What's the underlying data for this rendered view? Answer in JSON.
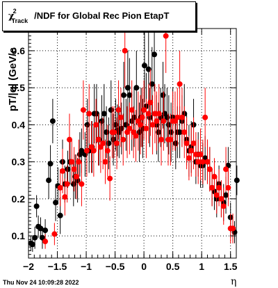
{
  "chart_data": {
    "type": "scatter",
    "title": "χ²Track/NDF for Global Rec Pion EtapT",
    "title_parts": {
      "base": "χ",
      "sup": "2",
      "sub": "Track",
      "rest": "/NDF for Global Rec Pion EtapT"
    },
    "xlabel": "η",
    "ylabel": "pT/|q| (GeV/c",
    "xlim": [
      -2,
      1.6
    ],
    "ylim": [
      0.04,
      0.66
    ],
    "xticks": [
      -2,
      -1.5,
      -1,
      -0.5,
      0,
      0.5,
      1,
      1.5
    ],
    "xtick_labels": [
      "−2",
      "−1.5",
      "−1",
      "−0.5",
      "0",
      "0.5",
      "1",
      "1.5"
    ],
    "yticks": [
      0.1,
      0.2,
      0.3,
      0.4,
      0.5,
      0.6
    ],
    "ytick_labels": [
      "0.1",
      "0.2",
      "0.3",
      "0.4",
      "0.5",
      "0.6"
    ],
    "grid": true,
    "timestamp": "Thu Nov 24 10:09:28 2022",
    "series": [
      {
        "color": "#000000",
        "points": [
          [
            -1.96,
            0.08
          ],
          [
            -1.93,
            0.077
          ],
          [
            -1.89,
            0.095
          ],
          [
            -1.86,
            0.18
          ],
          [
            -1.83,
            0.125
          ],
          [
            -1.79,
            0.12
          ],
          [
            -1.76,
            0.095
          ],
          [
            -1.71,
            0.115
          ],
          [
            -1.65,
            0.25
          ],
          [
            -1.62,
            0.295
          ],
          [
            -1.58,
            0.41
          ],
          [
            -1.53,
            0.19
          ],
          [
            -1.49,
            0.235
          ],
          [
            -1.45,
            0.155
          ],
          [
            -1.41,
            0.3
          ],
          [
            -1.37,
            0.24
          ],
          [
            -1.32,
            0.28
          ],
          [
            -1.28,
            0.3
          ],
          [
            -1.22,
            0.24
          ],
          [
            -1.19,
            0.26
          ],
          [
            -1.15,
            0.25
          ],
          [
            -1.11,
            0.32
          ],
          [
            -1.08,
            0.33
          ],
          [
            -1.02,
            0.32
          ],
          [
            -0.98,
            0.4
          ],
          [
            -0.95,
            0.33
          ],
          [
            -0.9,
            0.34
          ],
          [
            -0.86,
            0.43
          ],
          [
            -0.82,
            0.43
          ],
          [
            -0.78,
            0.36
          ],
          [
            -0.73,
            0.41
          ],
          [
            -0.69,
            0.43
          ],
          [
            -0.65,
            0.38
          ],
          [
            -0.61,
            0.35
          ],
          [
            -0.57,
            0.44
          ],
          [
            -0.53,
            0.36
          ],
          [
            -0.49,
            0.4
          ],
          [
            -0.46,
            0.385
          ],
          [
            -0.43,
            0.38
          ],
          [
            -0.39,
            0.39
          ],
          [
            -0.35,
            0.48
          ],
          [
            -0.31,
            0.4
          ],
          [
            -0.28,
            0.5
          ],
          [
            -0.25,
            0.48
          ],
          [
            -0.21,
            0.41
          ],
          [
            -0.17,
            0.42
          ],
          [
            -0.13,
            0.5
          ],
          [
            -0.08,
            0.38
          ],
          [
            -0.05,
            0.42
          ],
          [
            -0.02,
            0.39
          ],
          [
            0.01,
            0.56
          ],
          [
            0.04,
            0.45
          ],
          [
            0.08,
            0.55
          ],
          [
            0.1,
            0.42
          ],
          [
            0.14,
            0.51
          ],
          [
            0.18,
            0.59
          ],
          [
            0.22,
            0.4
          ],
          [
            0.25,
            0.38
          ],
          [
            0.29,
            0.42
          ],
          [
            0.33,
            0.48
          ],
          [
            0.36,
            0.43
          ],
          [
            0.4,
            0.42
          ],
          [
            0.43,
            0.4
          ],
          [
            0.47,
            0.38
          ],
          [
            0.5,
            0.42
          ],
          [
            0.55,
            0.35
          ],
          [
            0.58,
            0.38
          ],
          [
            0.62,
            0.38
          ],
          [
            0.66,
            0.41
          ],
          [
            0.7,
            0.43
          ],
          [
            0.74,
            0.36
          ],
          [
            0.78,
            0.33
          ],
          [
            0.82,
            0.34
          ],
          [
            0.86,
            0.4
          ],
          [
            0.9,
            0.3
          ],
          [
            0.94,
            0.32
          ],
          [
            0.98,
            0.29
          ],
          [
            1.02,
            0.29
          ],
          [
            1.06,
            0.31
          ],
          [
            1.1,
            0.3
          ],
          [
            1.14,
            0.28
          ],
          [
            1.18,
            0.23
          ],
          [
            1.22,
            0.22
          ],
          [
            1.26,
            0.2
          ],
          [
            1.3,
            0.24
          ],
          [
            1.34,
            0.2
          ],
          [
            1.38,
            0.19
          ],
          [
            1.42,
            0.21
          ],
          [
            1.46,
            0.29
          ],
          [
            1.5,
            0.15
          ],
          [
            1.54,
            0.12
          ],
          [
            1.57,
            0.11
          ],
          [
            1.61,
            0.25
          ]
        ],
        "errors": [
          0.02,
          0.02,
          0.03,
          0.03,
          0.03,
          0.03,
          0.03,
          0.03,
          0.05,
          0.05,
          0.06,
          0.05,
          0.05,
          0.05,
          0.06,
          0.05,
          0.05,
          0.06,
          0.06,
          0.06,
          0.06,
          0.06,
          0.06,
          0.06,
          0.07,
          0.06,
          0.07,
          0.08,
          0.08,
          0.07,
          0.07,
          0.08,
          0.07,
          0.07,
          0.08,
          0.07,
          0.07,
          0.07,
          0.07,
          0.07,
          0.09,
          0.07,
          0.1,
          0.1,
          0.08,
          0.08,
          0.1,
          0.08,
          0.08,
          0.08,
          0.1,
          0.09,
          0.1,
          0.08,
          0.1,
          0.1,
          0.08,
          0.08,
          0.08,
          0.09,
          0.08,
          0.08,
          0.08,
          0.08,
          0.08,
          0.07,
          0.07,
          0.07,
          0.07,
          0.08,
          0.07,
          0.07,
          0.07,
          0.07,
          0.06,
          0.06,
          0.06,
          0.06,
          0.06,
          0.06,
          0.06,
          0.05,
          0.05,
          0.05,
          0.05,
          0.05,
          0.05,
          0.05,
          0.05,
          0.04,
          0.04,
          0.03,
          0.04
        ]
      },
      {
        "color": "#ff0000",
        "points": [
          [
            -1.71,
            0.085
          ],
          [
            -1.55,
            0.105
          ],
          [
            -1.45,
            0.23
          ],
          [
            -1.41,
            0.275
          ],
          [
            -1.37,
            0.205
          ],
          [
            -1.33,
            0.24
          ],
          [
            -1.29,
            0.36
          ],
          [
            -1.25,
            0.3
          ],
          [
            -1.21,
            0.28
          ],
          [
            -1.17,
            0.26
          ],
          [
            -1.13,
            0.3
          ],
          [
            -1.08,
            0.24
          ],
          [
            -1.05,
            0.44
          ],
          [
            -0.99,
            0.33
          ],
          [
            -0.95,
            0.43
          ],
          [
            -0.91,
            0.34
          ],
          [
            -0.87,
            0.33
          ],
          [
            -0.83,
            0.4
          ],
          [
            -0.79,
            0.36
          ],
          [
            -0.75,
            0.34
          ],
          [
            -0.71,
            0.35
          ],
          [
            -0.67,
            0.3
          ],
          [
            -0.63,
            0.33
          ],
          [
            -0.59,
            0.255
          ],
          [
            -0.55,
            0.38
          ],
          [
            -0.52,
            0.38
          ],
          [
            -0.47,
            0.35
          ],
          [
            -0.44,
            0.44
          ],
          [
            -0.4,
            0.42
          ],
          [
            -0.36,
            0.36
          ],
          [
            -0.33,
            0.6
          ],
          [
            -0.29,
            0.38
          ],
          [
            -0.25,
            0.39
          ],
          [
            -0.21,
            0.44
          ],
          [
            -0.18,
            0.38
          ],
          [
            -0.14,
            0.37
          ],
          [
            -0.1,
            0.41
          ],
          [
            -0.06,
            0.4
          ],
          [
            -0.03,
            0.42
          ],
          [
            0.0,
            0.44
          ],
          [
            0.04,
            0.39
          ],
          [
            0.08,
            0.43
          ],
          [
            0.11,
            0.46
          ],
          [
            0.15,
            0.4
          ],
          [
            0.19,
            0.43
          ],
          [
            0.22,
            0.41
          ],
          [
            0.26,
            0.43
          ],
          [
            0.3,
            0.36
          ],
          [
            0.34,
            0.41
          ],
          [
            0.38,
            0.64
          ],
          [
            0.42,
            0.36
          ],
          [
            0.46,
            0.36
          ],
          [
            0.5,
            0.41
          ],
          [
            0.54,
            0.41
          ],
          [
            0.58,
            0.42
          ],
          [
            0.62,
            0.51
          ],
          [
            0.66,
            0.42
          ],
          [
            0.7,
            0.38
          ],
          [
            0.74,
            0.35
          ],
          [
            0.78,
            0.31
          ],
          [
            0.82,
            0.33
          ],
          [
            0.86,
            0.35
          ],
          [
            0.9,
            0.32
          ],
          [
            0.94,
            0.3
          ],
          [
            0.98,
            0.32
          ],
          [
            1.02,
            0.3
          ],
          [
            1.06,
            0.42
          ],
          [
            1.1,
            0.3
          ],
          [
            1.14,
            0.28
          ],
          [
            1.18,
            0.23
          ],
          [
            1.22,
            0.26
          ],
          [
            1.26,
            0.21
          ],
          [
            1.3,
            0.23
          ],
          [
            1.34,
            0.2
          ],
          [
            1.38,
            0.18
          ],
          [
            1.42,
            0.28
          ],
          [
            1.46,
            0.23
          ],
          [
            1.5,
            0.12
          ],
          [
            1.54,
            0.12
          ]
        ],
        "errors": [
          0.02,
          0.03,
          0.05,
          0.06,
          0.05,
          0.05,
          0.07,
          0.06,
          0.06,
          0.06,
          0.06,
          0.06,
          0.08,
          0.07,
          0.08,
          0.07,
          0.07,
          0.07,
          0.07,
          0.07,
          0.07,
          0.06,
          0.07,
          0.06,
          0.07,
          0.07,
          0.07,
          0.08,
          0.08,
          0.07,
          0.1,
          0.07,
          0.07,
          0.08,
          0.07,
          0.07,
          0.08,
          0.08,
          0.08,
          0.08,
          0.08,
          0.08,
          0.09,
          0.08,
          0.08,
          0.08,
          0.08,
          0.07,
          0.08,
          0.1,
          0.07,
          0.07,
          0.08,
          0.08,
          0.08,
          0.09,
          0.08,
          0.07,
          0.07,
          0.06,
          0.07,
          0.07,
          0.06,
          0.06,
          0.07,
          0.06,
          0.08,
          0.06,
          0.06,
          0.05,
          0.05,
          0.05,
          0.05,
          0.05,
          0.05,
          0.06,
          0.05,
          0.04,
          0.04
        ]
      }
    ]
  }
}
